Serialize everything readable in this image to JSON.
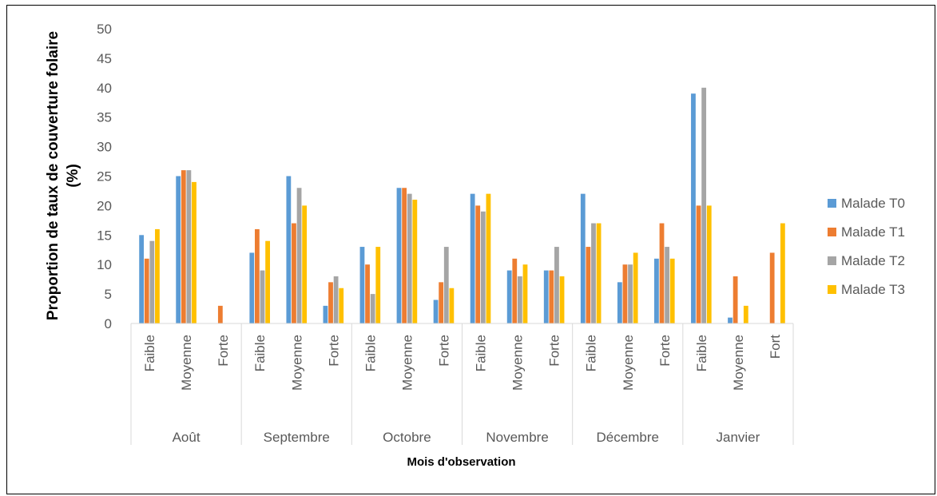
{
  "chart_data": {
    "type": "bar",
    "title": "",
    "ylabel": "Proportion de taux de couverture folaire (%)",
    "ylabel_lines": [
      "Proportion de taux de couverture folaire",
      "(%)"
    ],
    "xlabel": "Mois d'observation",
    "ylim": [
      0,
      50
    ],
    "yticks": [
      "0",
      "5",
      "10",
      "15",
      "20",
      "25",
      "30",
      "35",
      "40",
      "45",
      "50"
    ],
    "grid": false,
    "legend_position": "right",
    "groups": [
      {
        "name": "Août",
        "categories": [
          "Faible",
          "Moyenne",
          "Forte"
        ]
      },
      {
        "name": "Septembre",
        "categories": [
          "Faible",
          "Moyenne",
          "Forte"
        ]
      },
      {
        "name": "Octobre",
        "categories": [
          "Faible",
          "Moyenne",
          "Forte"
        ]
      },
      {
        "name": "Novembre",
        "categories": [
          "Faible",
          "Moyenne",
          "Forte"
        ]
      },
      {
        "name": "Décembre",
        "categories": [
          "Faible",
          "Moyenne",
          "Forte"
        ]
      },
      {
        "name": "Janvier",
        "categories": [
          "Faible",
          "Moyenne",
          "Fort"
        ]
      }
    ],
    "series": [
      {
        "name": "Malade T0",
        "color": "#5B9BD5",
        "values": [
          15,
          25,
          0,
          12,
          25,
          3,
          13,
          23,
          4,
          22,
          9,
          9,
          22,
          7,
          11,
          39,
          1,
          0
        ]
      },
      {
        "name": "Malade T1",
        "color": "#ED7D31",
        "values": [
          11,
          26,
          3,
          16,
          17,
          7,
          10,
          23,
          7,
          20,
          11,
          9,
          13,
          10,
          17,
          20,
          8,
          12
        ]
      },
      {
        "name": "Malade T2",
        "color": "#A5A5A5",
        "values": [
          14,
          26,
          0,
          9,
          23,
          8,
          5,
          22,
          13,
          19,
          8,
          13,
          17,
          10,
          13,
          40,
          0,
          0
        ]
      },
      {
        "name": "Malade T3",
        "color": "#FFC000",
        "values": [
          16,
          24,
          0,
          14,
          20,
          6,
          13,
          21,
          6,
          22,
          10,
          8,
          17,
          12,
          11,
          20,
          3,
          17
        ]
      }
    ]
  }
}
